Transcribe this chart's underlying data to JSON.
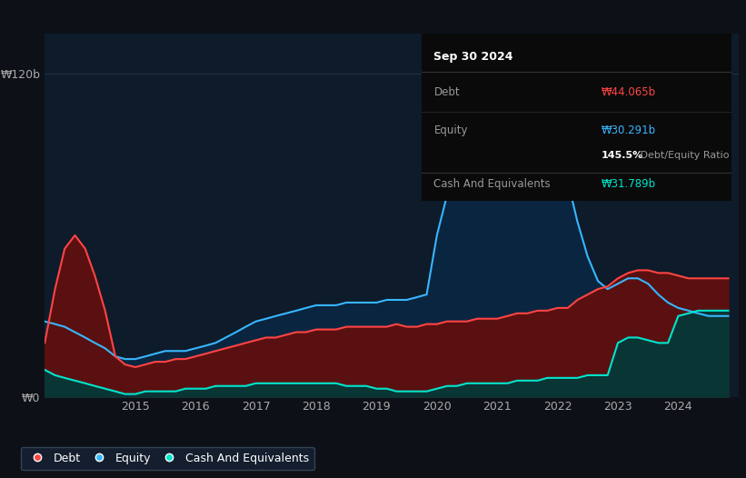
{
  "bg_color": "#0d1117",
  "plot_bg_color": "#0d1b2a",
  "grid_color": "#253545",
  "debt_color": "#ff4444",
  "equity_color": "#38b6ff",
  "cash_color": "#00e5cc",
  "debt_fill_color": "#5a1010",
  "equity_fill_color": "#0a2540",
  "cash_fill_color": "#0a3535",
  "ylabel_120": "₩120b",
  "ylabel_0": "₩0",
  "x_labels": [
    "2015",
    "2016",
    "2017",
    "2018",
    "2019",
    "2020",
    "2021",
    "2022",
    "2023",
    "2024"
  ],
  "tooltip_title": "Sep 30 2024",
  "tooltip_debt_label": "Debt",
  "tooltip_debt_value": "₩44.065b",
  "tooltip_equity_label": "Equity",
  "tooltip_equity_value": "₩30.291b",
  "tooltip_ratio_bold": "145.5%",
  "tooltip_ratio_rest": " Debt/Equity Ratio",
  "tooltip_cash_label": "Cash And Equivalents",
  "tooltip_cash_value": "₩31.789b",
  "legend_labels": [
    "Debt",
    "Equity",
    "Cash And Equivalents"
  ],
  "figsize": [
    8.21,
    5.26
  ],
  "dpi": 100,
  "time_points": [
    2013.5,
    2013.67,
    2013.83,
    2014.0,
    2014.17,
    2014.33,
    2014.5,
    2014.67,
    2014.83,
    2015.0,
    2015.17,
    2015.33,
    2015.5,
    2015.67,
    2015.83,
    2016.0,
    2016.17,
    2016.33,
    2016.5,
    2016.67,
    2016.83,
    2017.0,
    2017.17,
    2017.33,
    2017.5,
    2017.67,
    2017.83,
    2018.0,
    2018.17,
    2018.33,
    2018.5,
    2018.67,
    2018.83,
    2019.0,
    2019.17,
    2019.33,
    2019.5,
    2019.67,
    2019.83,
    2020.0,
    2020.17,
    2020.33,
    2020.5,
    2020.67,
    2020.83,
    2021.0,
    2021.17,
    2021.33,
    2021.5,
    2021.67,
    2021.83,
    2022.0,
    2022.17,
    2022.33,
    2022.5,
    2022.67,
    2022.83,
    2023.0,
    2023.17,
    2023.33,
    2023.5,
    2023.67,
    2023.83,
    2024.0,
    2024.17,
    2024.33,
    2024.5,
    2024.67,
    2024.83
  ],
  "equity_values": [
    28,
    27,
    26,
    24,
    22,
    20,
    18,
    15,
    14,
    14,
    15,
    16,
    17,
    17,
    17,
    18,
    19,
    20,
    22,
    24,
    26,
    28,
    29,
    30,
    31,
    32,
    33,
    34,
    34,
    34,
    35,
    35,
    35,
    35,
    36,
    36,
    36,
    37,
    38,
    60,
    75,
    88,
    100,
    108,
    112,
    120,
    116,
    106,
    100,
    96,
    92,
    88,
    80,
    65,
    52,
    43,
    40,
    42,
    44,
    44,
    42,
    38,
    35,
    33,
    32,
    31,
    30,
    30,
    30
  ],
  "debt_values": [
    20,
    40,
    55,
    60,
    55,
    45,
    32,
    15,
    12,
    11,
    12,
    13,
    13,
    14,
    14,
    15,
    16,
    17,
    18,
    19,
    20,
    21,
    22,
    22,
    23,
    24,
    24,
    25,
    25,
    25,
    26,
    26,
    26,
    26,
    26,
    27,
    26,
    26,
    27,
    27,
    28,
    28,
    28,
    29,
    29,
    29,
    30,
    31,
    31,
    32,
    32,
    33,
    33,
    36,
    38,
    40,
    41,
    44,
    46,
    47,
    47,
    46,
    46,
    45,
    44,
    44,
    44,
    44,
    44
  ],
  "cash_values": [
    10,
    8,
    7,
    6,
    5,
    4,
    3,
    2,
    1,
    1,
    2,
    2,
    2,
    2,
    3,
    3,
    3,
    4,
    4,
    4,
    4,
    5,
    5,
    5,
    5,
    5,
    5,
    5,
    5,
    5,
    4,
    4,
    4,
    3,
    3,
    2,
    2,
    2,
    2,
    3,
    4,
    4,
    5,
    5,
    5,
    5,
    5,
    6,
    6,
    6,
    7,
    7,
    7,
    7,
    8,
    8,
    8,
    20,
    22,
    22,
    21,
    20,
    20,
    30,
    31,
    32,
    32,
    32,
    32
  ]
}
